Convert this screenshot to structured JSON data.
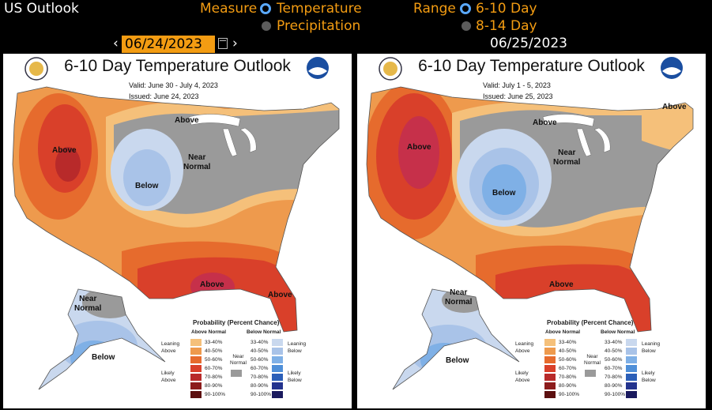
{
  "header": {
    "title": "US Outlook",
    "measure_label": "Measure",
    "measure_options": [
      "Temperature",
      "Precipitation"
    ],
    "range_label": "Range",
    "range_options": [
      "6-10 Day",
      "8-14 Day"
    ],
    "left_date": "06/24/2023",
    "right_date": "06/25/2023"
  },
  "colors": {
    "accent": "#f39c12",
    "radio_selected": "#5aa9ff"
  },
  "panels": [
    {
      "title": "6-10 Day Temperature Outlook",
      "valid": "Valid:  June 30 - July 4, 2023",
      "issued": "Issued:  June 24, 2023",
      "labels": {
        "above_west": "Above",
        "above_north": "Above",
        "near_normal": "Near\nNormal",
        "below": "Below",
        "above_south": "Above",
        "above_fl": "Above",
        "ak_near": "Near\nNormal",
        "ak_below": "Below"
      }
    },
    {
      "title": "6-10 Day Temperature Outlook",
      "valid": "Valid:  July 1 - 5, 2023",
      "issued": "Issued:  June 25, 2023",
      "labels": {
        "above_west": "Above",
        "above_north": "Above",
        "near_normal": "Near\nNormal",
        "below": "Below",
        "above_south": "Above",
        "above_ne": "Above",
        "ak_near": "Near\nNormal",
        "ak_below": "Below"
      }
    }
  ],
  "legend": {
    "title": "Probability (Percent Chance)",
    "above_normal": "Above Normal",
    "below_normal": "Below Normal",
    "leaning_above": "Leaning\nAbove",
    "likely_above": "Likely\nAbove",
    "leaning_below": "Leaning\nBelow",
    "likely_below": "Likely\nBelow",
    "near_normal": "Near\nNormal",
    "above_ranges": [
      "33-40%",
      "40-50%",
      "50-60%",
      "60-70%",
      "70-80%",
      "80-90%",
      "90-100%"
    ],
    "below_ranges": [
      "33-40%",
      "40-50%",
      "50-60%",
      "60-70%",
      "70-80%",
      "80-90%",
      "90-100%"
    ],
    "above_colors": [
      "#f5c07a",
      "#ee9a4d",
      "#e66b2d",
      "#d9402a",
      "#b82a2a",
      "#8c1c1c",
      "#5c1010"
    ],
    "below_colors": [
      "#c9d8ee",
      "#a9c3e8",
      "#7fb0e6",
      "#4f8fd8",
      "#2b5fb8",
      "#24348e",
      "#1a1a5e"
    ],
    "near_color": "#9a9a9a"
  }
}
